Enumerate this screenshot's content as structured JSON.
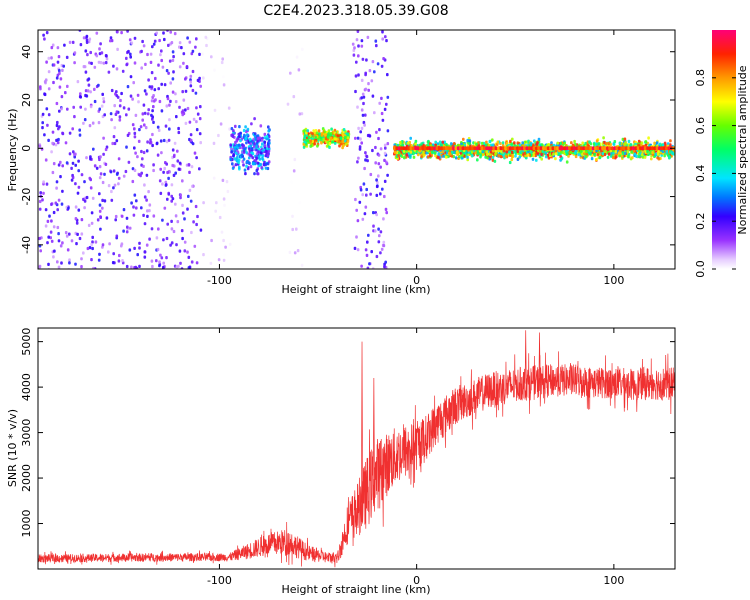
{
  "title": "C2E4.2023.318.05.39.G08",
  "chart_data": [
    {
      "type": "heatmap",
      "name": "spectrogram",
      "xlabel": "Height of straight line (km)",
      "ylabel": "Frequency (Hz)",
      "xlim": [
        -192,
        131
      ],
      "ylim": [
        -50,
        49
      ],
      "xticks": [
        -100,
        0,
        100
      ],
      "yticks": [
        -40,
        -20,
        0,
        20,
        40
      ],
      "regions": [
        {
          "x": [
            -192,
            -110
          ],
          "freq_center": 0,
          "freq_spread": 50,
          "density": "high",
          "amplitude": [
            0.05,
            0.25
          ]
        },
        {
          "x": [
            -110,
            -95
          ],
          "freq_center": 0,
          "freq_spread": 50,
          "density": "low",
          "amplitude": [
            0.0,
            0.1
          ]
        },
        {
          "x": [
            -95,
            -75
          ],
          "freq_center": 0,
          "freq_spread": 8,
          "density": "high",
          "amplitude": [
            0.1,
            0.4
          ]
        },
        {
          "x": [
            -66,
            -58
          ],
          "freq_center": 0,
          "freq_spread": 50,
          "density": "low",
          "amplitude": [
            0.0,
            0.1
          ]
        },
        {
          "x": [
            -58,
            -35
          ],
          "freq_center": 5,
          "freq_spread": 3,
          "density": "high",
          "amplitude": [
            0.4,
            0.9
          ]
        },
        {
          "x": [
            -33,
            -15
          ],
          "freq_center": 0,
          "freq_spread": 50,
          "density": "high",
          "amplitude": [
            0.05,
            0.25
          ]
        },
        {
          "x": [
            -12,
            131
          ],
          "freq_center": 0,
          "freq_spread": 3,
          "density": "high",
          "amplitude": [
            0.3,
            0.95
          ]
        }
      ],
      "colorbar": {
        "label": "Normalized spectral amplitude",
        "range": [
          0,
          1
        ],
        "ticks": [
          0.0,
          0.2,
          0.4,
          0.6,
          0.8
        ]
      }
    },
    {
      "type": "line",
      "name": "snr",
      "xlabel": "Height of straight line (km)",
      "ylabel": "SNR (10 * v/v)",
      "xlim": [
        -192,
        131
      ],
      "ylim": [
        0,
        5300
      ],
      "xticks": [
        -100,
        0,
        100
      ],
      "yticks": [
        1000,
        2000,
        3000,
        4000,
        5000
      ],
      "color": "#f03030",
      "series": [
        {
          "name": "SNR",
          "x": [
            -192,
            -170,
            -150,
            -130,
            -110,
            -95,
            -85,
            -75,
            -65,
            -55,
            -45,
            -40,
            -35,
            -30,
            -25,
            -20,
            -15,
            -10,
            -5,
            0,
            5,
            10,
            15,
            20,
            25,
            30,
            35,
            40,
            50,
            60,
            70,
            80,
            90,
            100,
            110,
            120,
            131
          ],
          "y": [
            230,
            240,
            250,
            255,
            260,
            260,
            400,
            550,
            600,
            350,
            250,
            250,
            1000,
            1300,
            1700,
            2100,
            2300,
            2500,
            2600,
            2700,
            2900,
            3200,
            3400,
            3600,
            3700,
            3800,
            3900,
            3950,
            4050,
            4100,
            4150,
            4150,
            4100,
            4100,
            4050,
            4100,
            4050
          ],
          "noise": [
            90,
            90,
            90,
            90,
            90,
            90,
            180,
            250,
            300,
            180,
            120,
            150,
            450,
            600,
            800,
            800,
            700,
            650,
            600,
            550,
            500,
            480,
            450,
            420,
            400,
            400,
            400,
            400,
            380,
            380,
            360,
            360,
            350,
            350,
            350,
            380,
            380
          ]
        }
      ]
    }
  ]
}
